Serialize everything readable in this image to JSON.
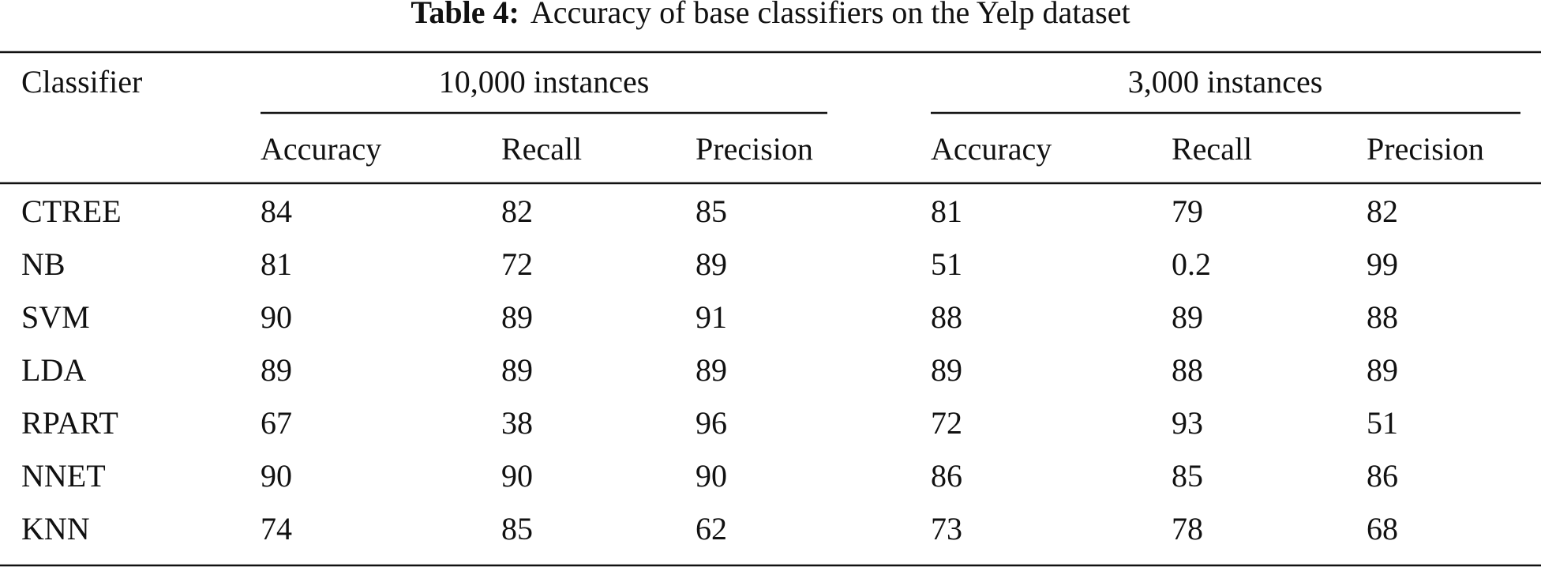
{
  "title": {
    "label": "Table 4:",
    "text": "Accuracy of base classifiers on the Yelp dataset"
  },
  "table": {
    "header": {
      "first": "Classifier",
      "groups": [
        "10,000 instances",
        "3,000 instances"
      ],
      "subheaders": [
        "Accuracy",
        "Recall",
        "Precision",
        "Accuracy",
        "Recall",
        "Precision"
      ]
    },
    "rows": [
      [
        "CTREE",
        84,
        82,
        85,
        81,
        79,
        82
      ],
      [
        "NB",
        81,
        72,
        89,
        51,
        0.2,
        99
      ],
      [
        "SVM",
        90,
        89,
        91,
        88,
        89,
        88
      ],
      [
        "LDA",
        89,
        89,
        89,
        89,
        88,
        89
      ],
      [
        "RPART",
        67,
        38,
        96,
        72,
        93,
        51
      ],
      [
        "NNET",
        90,
        90,
        90,
        86,
        85,
        86
      ],
      [
        "KNN",
        74,
        85,
        62,
        73,
        78,
        68
      ]
    ]
  }
}
